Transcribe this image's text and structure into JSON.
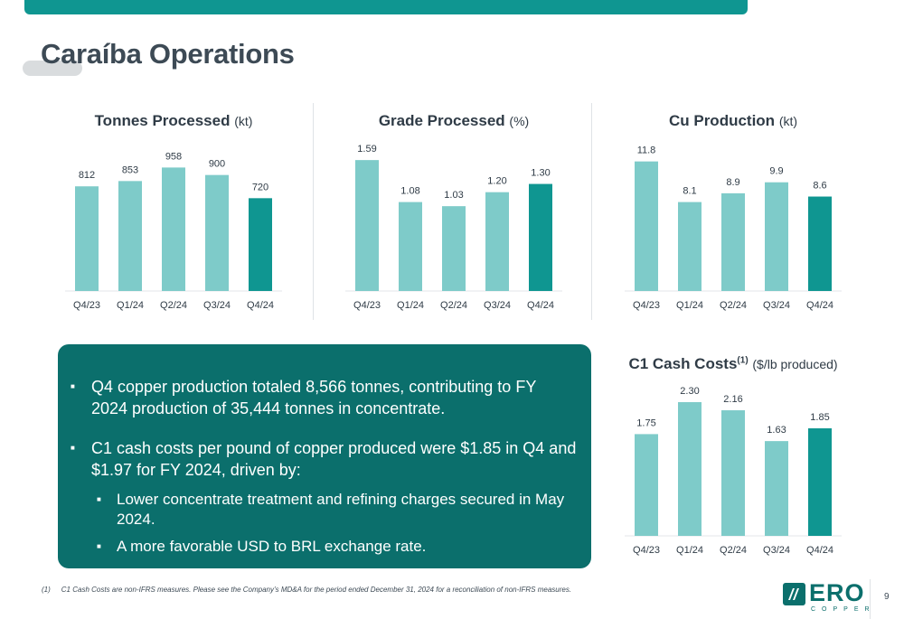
{
  "page": {
    "title": "Caraíba Operations",
    "page_number": "9"
  },
  "colors": {
    "bar": "#7ecbc9",
    "highlight_bar": "#0f9691",
    "box": "#0b6f6c",
    "accent": "#0f9691"
  },
  "chart_data": [
    {
      "type": "bar",
      "title": "Tonnes Processed",
      "unit": "(kt)",
      "title_sup": "",
      "categories": [
        "Q4/23",
        "Q1/24",
        "Q2/24",
        "Q3/24",
        "Q4/24"
      ],
      "values": [
        812,
        853,
        958,
        900,
        720
      ],
      "labels": [
        "812",
        "853",
        "958",
        "900",
        "720"
      ],
      "highlight_last": true,
      "ylim": [
        0,
        1150
      ]
    },
    {
      "type": "bar",
      "title": "Grade Processed",
      "unit": "(%)",
      "title_sup": "",
      "categories": [
        "Q4/23",
        "Q1/24",
        "Q2/24",
        "Q3/24",
        "Q4/24"
      ],
      "values": [
        1.59,
        1.08,
        1.03,
        1.2,
        1.3
      ],
      "labels": [
        "1.59",
        "1.08",
        "1.03",
        "1.20",
        "1.30"
      ],
      "highlight_last": true,
      "ylim": [
        0,
        1.8
      ]
    },
    {
      "type": "bar",
      "title": "Cu Production",
      "unit": "(kt)",
      "title_sup": "",
      "categories": [
        "Q4/23",
        "Q1/24",
        "Q2/24",
        "Q3/24",
        "Q4/24"
      ],
      "values": [
        11.8,
        8.1,
        8.9,
        9.9,
        8.6
      ],
      "labels": [
        "11.8",
        "8.1",
        "8.9",
        "9.9",
        "8.6"
      ],
      "highlight_last": true,
      "ylim": [
        0,
        13.5
      ]
    },
    {
      "type": "bar",
      "title": "C1 Cash Costs",
      "unit": "($/lb produced)",
      "title_sup": "(1)",
      "categories": [
        "Q4/23",
        "Q1/24",
        "Q2/24",
        "Q3/24",
        "Q4/24"
      ],
      "values": [
        1.75,
        2.3,
        2.16,
        1.63,
        1.85
      ],
      "labels": [
        "1.75",
        "2.30",
        "2.16",
        "1.63",
        "1.85"
      ],
      "highlight_last": true,
      "ylim": [
        0,
        2.58
      ]
    }
  ],
  "highlights": {
    "bullet1": "Q4 copper production totaled 8,566 tonnes, contributing to FY 2024 production of 35,444 tonnes in concentrate.",
    "bullet2": "C1 cash costs per pound of copper produced were $1.85 in Q4 and $1.97 for FY 2024, driven by:",
    "sub1": "Lower concentrate treatment and refining charges secured in May 2024.",
    "sub2": "A more favorable USD to BRL exchange rate."
  },
  "footnote": {
    "marker": "(1)",
    "text": "C1 Cash Costs are non-IFRS measures. Please see the Company’s MD&A for the period ended December 31, 2024 for a reconciliation of non-IFRS measures."
  },
  "logo": {
    "text": "ERO",
    "subtext": "COPPER",
    "icon": "ero-logo-icon"
  }
}
